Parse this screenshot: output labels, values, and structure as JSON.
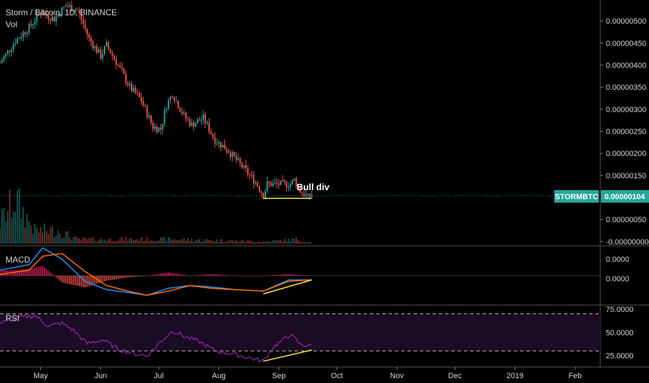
{
  "header": {
    "symbol_title": "Storm / Bitcoin, 1D, BINANCE",
    "volume_label": "Vol"
  },
  "price_badge": {
    "ticker": "STORMBTC",
    "price": "0.00000104",
    "ticker_color": "#26a69a"
  },
  "annotation": {
    "text": "Bull div"
  },
  "colors": {
    "up": "#26a69a",
    "down": "#ef5350",
    "macd_line": "#2196f3",
    "signal_line": "#ff6d00",
    "hist_pos": "#e91e63",
    "rsi_line": "#9c27b0",
    "divergence_line": "#ffeb3b",
    "price_line": "#26a69a"
  },
  "chart_data": [
    {
      "type": "candlestick",
      "title": "Storm / Bitcoin, 1D, BINANCE",
      "y_tick_labels": [
        "0.00000500",
        "0.00000450",
        "0.00000400",
        "0.00000350",
        "0.00000300",
        "0.00000250",
        "0.00000200",
        "0.00000150",
        "0.00000050",
        "-0.00000000"
      ],
      "y_ticks": [
        5.0,
        4.5,
        4.0,
        3.5,
        3.0,
        2.5,
        2.0,
        1.5,
        0.5,
        0.0
      ],
      "y_unit": "×1e-6 BTC",
      "ylim": [
        -0.05,
        5.35
      ],
      "x_tick_labels": [
        "May",
        "Jun",
        "Jul",
        "Aug",
        "Sep",
        "Oct",
        "Nov",
        "Dec",
        "2019",
        "Feb"
      ],
      "x_tick_dates": [
        "2018-05-01",
        "2018-06-01",
        "2018-07-01",
        "2018-08-01",
        "2018-09-01",
        "2018-10-01",
        "2018-11-01",
        "2018-12-01",
        "2019-01-01",
        "2019-02-01"
      ],
      "xlim": [
        "2018-04-10",
        "2019-02-14"
      ],
      "last_price": 1.04,
      "price_anchors": [
        {
          "date": "2018-04-10",
          "close": 4.05
        },
        {
          "date": "2018-04-18",
          "close": 4.55
        },
        {
          "date": "2018-04-25",
          "close": 4.85
        },
        {
          "date": "2018-05-01",
          "close": 5.2
        },
        {
          "date": "2018-05-08",
          "close": 5.05
        },
        {
          "date": "2018-05-14",
          "close": 5.35
        },
        {
          "date": "2018-05-20",
          "close": 5.25
        },
        {
          "date": "2018-05-26",
          "close": 4.6
        },
        {
          "date": "2018-06-01",
          "close": 4.2
        },
        {
          "date": "2018-06-04",
          "close": 4.45
        },
        {
          "date": "2018-06-10",
          "close": 4.0
        },
        {
          "date": "2018-06-16",
          "close": 3.5
        },
        {
          "date": "2018-06-22",
          "close": 3.2
        },
        {
          "date": "2018-06-28",
          "close": 2.6
        },
        {
          "date": "2018-07-02",
          "close": 2.55
        },
        {
          "date": "2018-07-05",
          "close": 3.1
        },
        {
          "date": "2018-07-08",
          "close": 3.35
        },
        {
          "date": "2018-07-14",
          "close": 2.85
        },
        {
          "date": "2018-07-18",
          "close": 2.65
        },
        {
          "date": "2018-07-24",
          "close": 2.8
        },
        {
          "date": "2018-07-30",
          "close": 2.3
        },
        {
          "date": "2018-08-05",
          "close": 2.1
        },
        {
          "date": "2018-08-11",
          "close": 1.8
        },
        {
          "date": "2018-08-16",
          "close": 1.55
        },
        {
          "date": "2018-08-20",
          "close": 1.35
        },
        {
          "date": "2018-08-24",
          "close": 1.05
        },
        {
          "date": "2018-08-26",
          "close": 1.3
        },
        {
          "date": "2018-08-30",
          "close": 1.3
        },
        {
          "date": "2018-09-03",
          "close": 1.3
        },
        {
          "date": "2018-09-07",
          "close": 1.3
        },
        {
          "date": "2018-09-09",
          "close": 1.4
        },
        {
          "date": "2018-09-12",
          "close": 1.15
        },
        {
          "date": "2018-09-16",
          "close": 1.0
        },
        {
          "date": "2018-09-18",
          "close": 1.04
        }
      ],
      "volume_anchors": [
        {
          "date": "2018-04-10",
          "value": 0.5
        },
        {
          "date": "2018-04-18",
          "value": 1.0
        },
        {
          "date": "2018-04-28",
          "value": 0.3
        },
        {
          "date": "2018-05-10",
          "value": 0.3
        },
        {
          "date": "2018-05-20",
          "value": 0.1
        },
        {
          "date": "2018-07-10",
          "value": 0.1
        },
        {
          "date": "2018-08-25",
          "value": 0.05
        },
        {
          "date": "2018-09-10",
          "value": 0.1
        },
        {
          "date": "2018-09-18",
          "value": 0.03
        }
      ],
      "divergence_segment": {
        "start": {
          "date": "2018-08-24",
          "price": 0.98
        },
        "end": {
          "date": "2018-09-18",
          "price": 0.98
        }
      }
    },
    {
      "type": "line",
      "title": "MACD",
      "y_tick_labels": [
        "0.0000",
        "0.0000"
      ],
      "ylim": [
        -1,
        1
      ],
      "series": [
        {
          "name": "MACD",
          "color": "#2196f3",
          "x": [
            "2018-04-10",
            "2018-04-25",
            "2018-05-02",
            "2018-05-12",
            "2018-05-24",
            "2018-06-04",
            "2018-06-15",
            "2018-06-25",
            "2018-07-06",
            "2018-07-17",
            "2018-07-28",
            "2018-08-10",
            "2018-08-24",
            "2018-09-06",
            "2018-09-18"
          ],
          "y": [
            0.2,
            0.4,
            1.0,
            0.6,
            -0.2,
            -0.5,
            -0.6,
            -0.7,
            -0.45,
            -0.35,
            -0.4,
            -0.5,
            -0.55,
            -0.15,
            -0.15
          ]
        },
        {
          "name": "Signal",
          "color": "#ff6d00",
          "x": [
            "2018-04-10",
            "2018-04-25",
            "2018-05-02",
            "2018-05-12",
            "2018-05-24",
            "2018-06-04",
            "2018-06-15",
            "2018-06-25",
            "2018-07-06",
            "2018-07-17",
            "2018-07-28",
            "2018-08-10",
            "2018-08-24",
            "2018-09-06",
            "2018-09-18"
          ],
          "y": [
            0.05,
            0.2,
            0.7,
            0.8,
            0.15,
            -0.35,
            -0.55,
            -0.7,
            -0.55,
            -0.35,
            -0.45,
            -0.5,
            -0.55,
            -0.2,
            -0.15
          ]
        }
      ],
      "divergence_segment": {
        "start": {
          "date": "2018-08-24",
          "value": -0.65
        },
        "end": {
          "date": "2018-09-18",
          "value": -0.15
        }
      }
    },
    {
      "type": "line",
      "title": "RSI",
      "y_tick_labels": [
        "75.0000",
        "50.0000",
        "25.0000"
      ],
      "y_ticks": [
        75,
        50,
        25
      ],
      "ylim": [
        15,
        78
      ],
      "band": {
        "upper": 70,
        "lower": 30
      },
      "series": [
        {
          "name": "RSI",
          "color": "#9c27b0",
          "x": [
            "2018-04-10",
            "2018-04-20",
            "2018-04-28",
            "2018-05-05",
            "2018-05-12",
            "2018-05-18",
            "2018-05-25",
            "2018-06-02",
            "2018-06-10",
            "2018-06-18",
            "2018-06-25",
            "2018-07-02",
            "2018-07-08",
            "2018-07-15",
            "2018-07-22",
            "2018-07-30",
            "2018-08-08",
            "2018-08-16",
            "2018-08-24",
            "2018-08-29",
            "2018-09-02",
            "2018-09-07",
            "2018-09-12",
            "2018-09-18"
          ],
          "y": [
            60,
            66,
            68,
            57,
            60,
            52,
            38,
            42,
            32,
            27,
            25,
            40,
            52,
            45,
            40,
            30,
            27,
            23,
            19,
            34,
            40,
            48,
            37,
            35
          ]
        }
      ],
      "divergence_segment": {
        "start": {
          "date": "2018-08-24",
          "value": 19
        },
        "end": {
          "date": "2018-09-18",
          "value": 31
        }
      }
    }
  ]
}
